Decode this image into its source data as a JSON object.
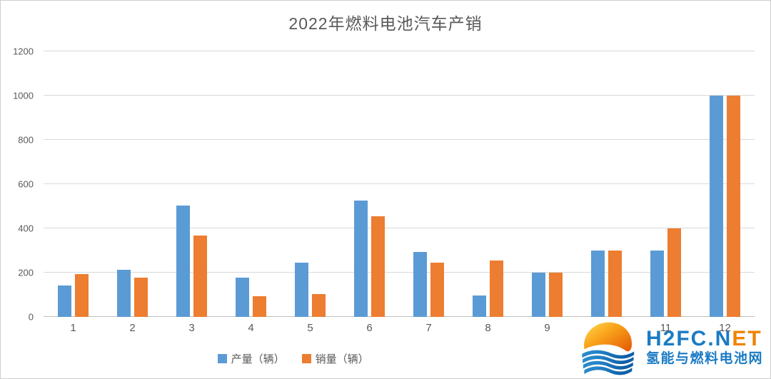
{
  "chart_data": {
    "type": "bar",
    "title": "2022年燃料电池汽车产销",
    "categories": [
      "1",
      "2",
      "3",
      "4",
      "5",
      "6",
      "7",
      "8",
      "9",
      "10",
      "11",
      "12"
    ],
    "series": [
      {
        "name": "产量（辆）",
        "color": "#5B9BD5",
        "values": [
          142,
          213,
          502,
          178,
          244,
          527,
          292,
          97,
          200,
          300,
          300,
          1000
        ]
      },
      {
        "name": "销量（辆）",
        "color": "#ED7D31",
        "values": [
          192,
          178,
          367,
          95,
          104,
          455,
          245,
          255,
          200,
          300,
          400,
          1000
        ]
      }
    ],
    "xlabel": "",
    "ylabel": "",
    "ylim": [
      0,
      1200
    ],
    "yticks": [
      0,
      200,
      400,
      600,
      800,
      1000,
      1200
    ],
    "grid": true,
    "legend_position": "bottom"
  },
  "watermark": {
    "brand_primary": "H2FC.N",
    "brand_secondary": "ET",
    "subtitle": "氢能与燃料电池网",
    "colors": {
      "blue": "#1B7BC4",
      "orange": "#F08300"
    }
  }
}
